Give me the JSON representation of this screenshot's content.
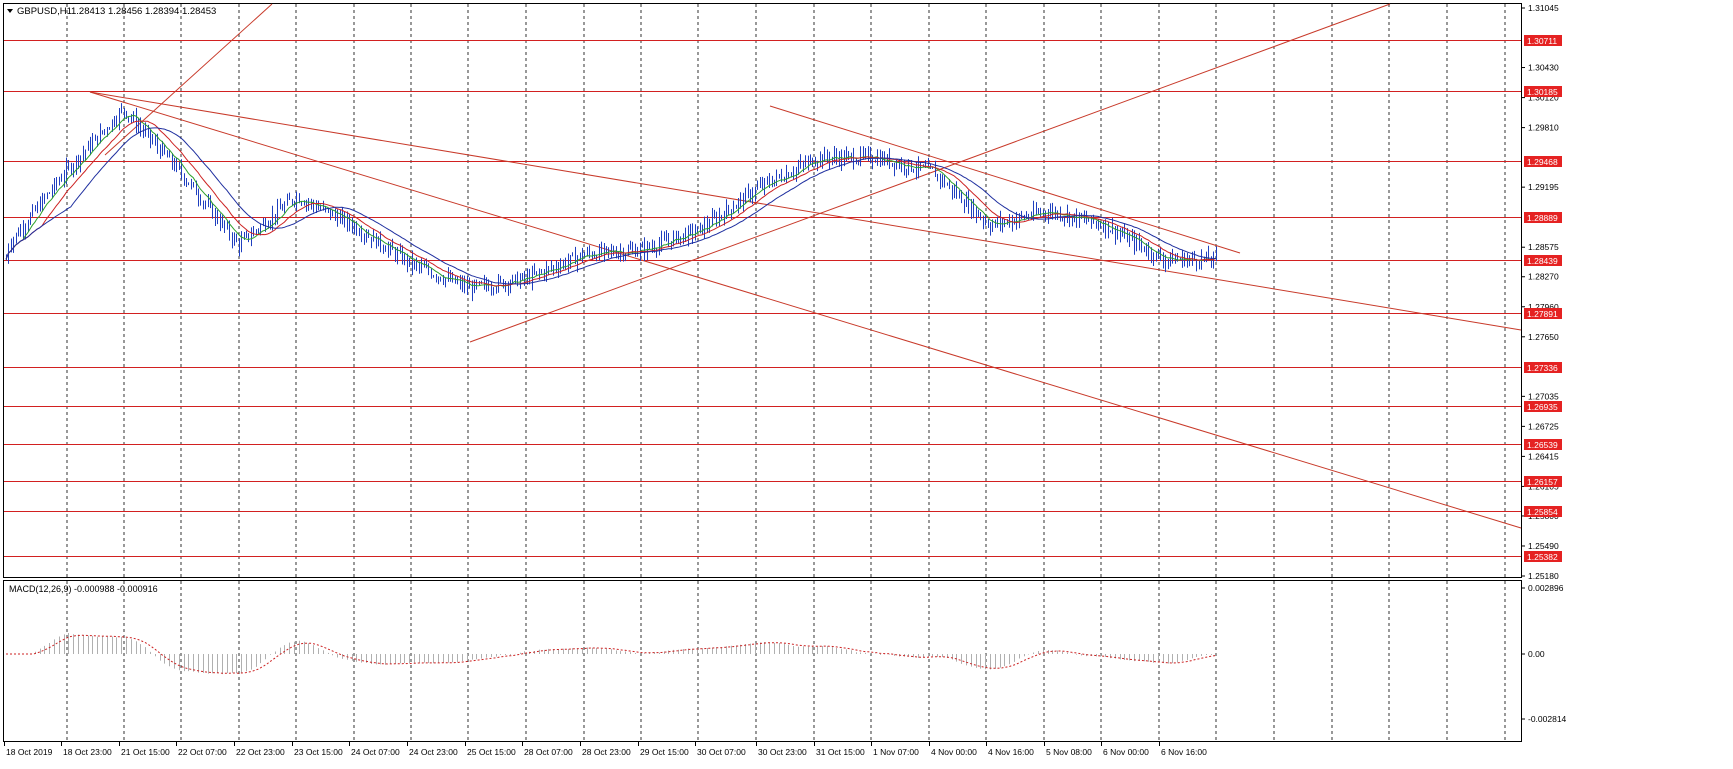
{
  "header": {
    "symbol_timeframe": "GBPUSD,H1",
    "ohlc": "1.28413 1.28456 1.28394 1.28453"
  },
  "colors": {
    "background": "#ffffff",
    "candles": "#1f3fbf",
    "hline": "#d22020",
    "trendline": "#c83a2a",
    "ma_fast": "#2ca02c",
    "ma_mid": "#cc2222",
    "ma_slow": "#1f2f9f",
    "macd_hist": "#b0b0b0",
    "macd_signal": "#cc2222",
    "label_bg": "#e52222",
    "grid": "#000000"
  },
  "price_axis": {
    "ticks": [
      "1.31045",
      "1.30430",
      "1.30120",
      "1.29810",
      "1.29195",
      "1.28575",
      "1.28270",
      "1.27960",
      "1.27650",
      "1.27035",
      "1.26725",
      "1.26415",
      "1.26105",
      "1.25800",
      "1.25490",
      "1.25180"
    ]
  },
  "hlines": [
    {
      "label": "1.30711",
      "price": 1.30711
    },
    {
      "label": "1.30185",
      "price": 1.30185
    },
    {
      "label": "1.29468",
      "price": 1.29468
    },
    {
      "label": "1.28889",
      "price": 1.28889
    },
    {
      "label": "1.28439",
      "price": 1.28439
    },
    {
      "label": "1.27891",
      "price": 1.27891
    },
    {
      "label": "1.27336",
      "price": 1.27336
    },
    {
      "label": "1.26935",
      "price": 1.26935
    },
    {
      "label": "1.26539",
      "price": 1.26539
    },
    {
      "label": "1.26157",
      "price": 1.26157
    },
    {
      "label": "1.25854",
      "price": 1.25854
    },
    {
      "label": "1.25382",
      "price": 1.25382
    }
  ],
  "time_axis": {
    "labels": [
      "18 Oct 2019",
      "18 Oct 23:00",
      "21 Oct 15:00",
      "22 Oct 07:00",
      "22 Oct 23:00",
      "23 Oct 15:00",
      "24 Oct 07:00",
      "24 Oct 23:00",
      "25 Oct 15:00",
      "28 Oct 07:00",
      "28 Oct 23:00",
      "29 Oct 15:00",
      "30 Oct 07:00",
      "30 Oct 23:00",
      "31 Oct 15:00",
      "1 Nov 07:00",
      "4 Nov 00:00",
      "4 Nov 16:00",
      "5 Nov 08:00",
      "6 Nov 00:00",
      "6 Nov 16:00"
    ]
  },
  "macd": {
    "title": "MACD(12,26,9) -0.000988 -0.000916",
    "ticks": [
      "0.002896",
      "0.00",
      "-0.002814"
    ]
  },
  "chart_data": {
    "type": "candlestick",
    "symbol": "GBPUSD",
    "timeframe": "H1",
    "close_path": [
      [
        "18 Oct 2019",
        1.286
      ],
      [
        "18 Oct 23:00",
        1.2935
      ],
      [
        "21 Oct 15:00",
        1.3
      ],
      [
        "22 Oct 07:00",
        1.2935
      ],
      [
        "22 Oct 23:00",
        1.286
      ],
      [
        "23 Oct 15:00",
        1.291
      ],
      [
        "24 Oct 07:00",
        1.288
      ],
      [
        "24 Oct 23:00",
        1.284
      ],
      [
        "25 Oct 15:00",
        1.2815
      ],
      [
        "28 Oct 07:00",
        1.2825
      ],
      [
        "28 Oct 23:00",
        1.285
      ],
      [
        "29 Oct 15:00",
        1.2855
      ],
      [
        "30 Oct 07:00",
        1.2875
      ],
      [
        "30 Oct 23:00",
        1.292
      ],
      [
        "31 Oct 15:00",
        1.295
      ],
      [
        "1 Nov 07:00",
        1.295
      ],
      [
        "4 Nov 00:00",
        1.2935
      ],
      [
        "4 Nov 16:00",
        1.288
      ],
      [
        "5 Nov 08:00",
        1.2895
      ],
      [
        "6 Nov 00:00",
        1.288
      ],
      [
        "6 Nov 16:00",
        1.2845
      ]
    ],
    "ylim": [
      1.2518,
      1.31045
    ]
  }
}
